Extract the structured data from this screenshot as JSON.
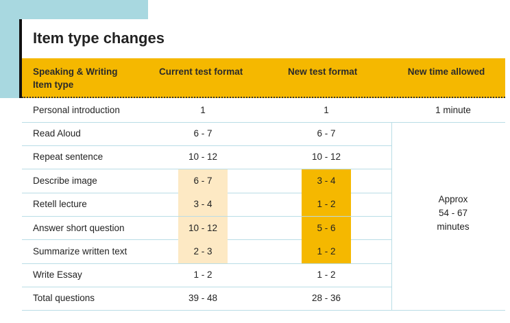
{
  "title": "Item type changes",
  "headers": {
    "item_line1": "Speaking & Writing",
    "item_line2": "Item type",
    "current": "Current test format",
    "new": "New test format",
    "time": "New time allowed"
  },
  "rows": [
    {
      "item": "Personal introduction",
      "current": "1",
      "new": "1",
      "time": "1 minute"
    },
    {
      "item": "Read Aloud",
      "current": "6 - 7",
      "new": "6 - 7"
    },
    {
      "item": "Repeat sentence",
      "current": "10 - 12",
      "new": "10 - 12"
    },
    {
      "item": "Describe image",
      "current": "6 - 7",
      "new": "3 - 4"
    },
    {
      "item": "Retell lecture",
      "current": "3 - 4",
      "new": "1 - 2"
    },
    {
      "item": "Answer short question",
      "current": "10 - 12",
      "new": "5 - 6"
    },
    {
      "item": "Summarize written text",
      "current": "2 - 3",
      "new": "1 - 2"
    },
    {
      "item": "Write Essay",
      "current": "1 - 2",
      "new": "1 - 2"
    },
    {
      "item": "Total questions",
      "current": "39 - 48",
      "new": "28 - 36"
    }
  ],
  "merged_time": [
    "Approx",
    "54 - 67",
    "minutes"
  ],
  "colors": {
    "accent": "#f5b800",
    "highlight_light": "#fde9c4",
    "background_block": "#a8d8e0",
    "grid": "#b9dde6"
  }
}
